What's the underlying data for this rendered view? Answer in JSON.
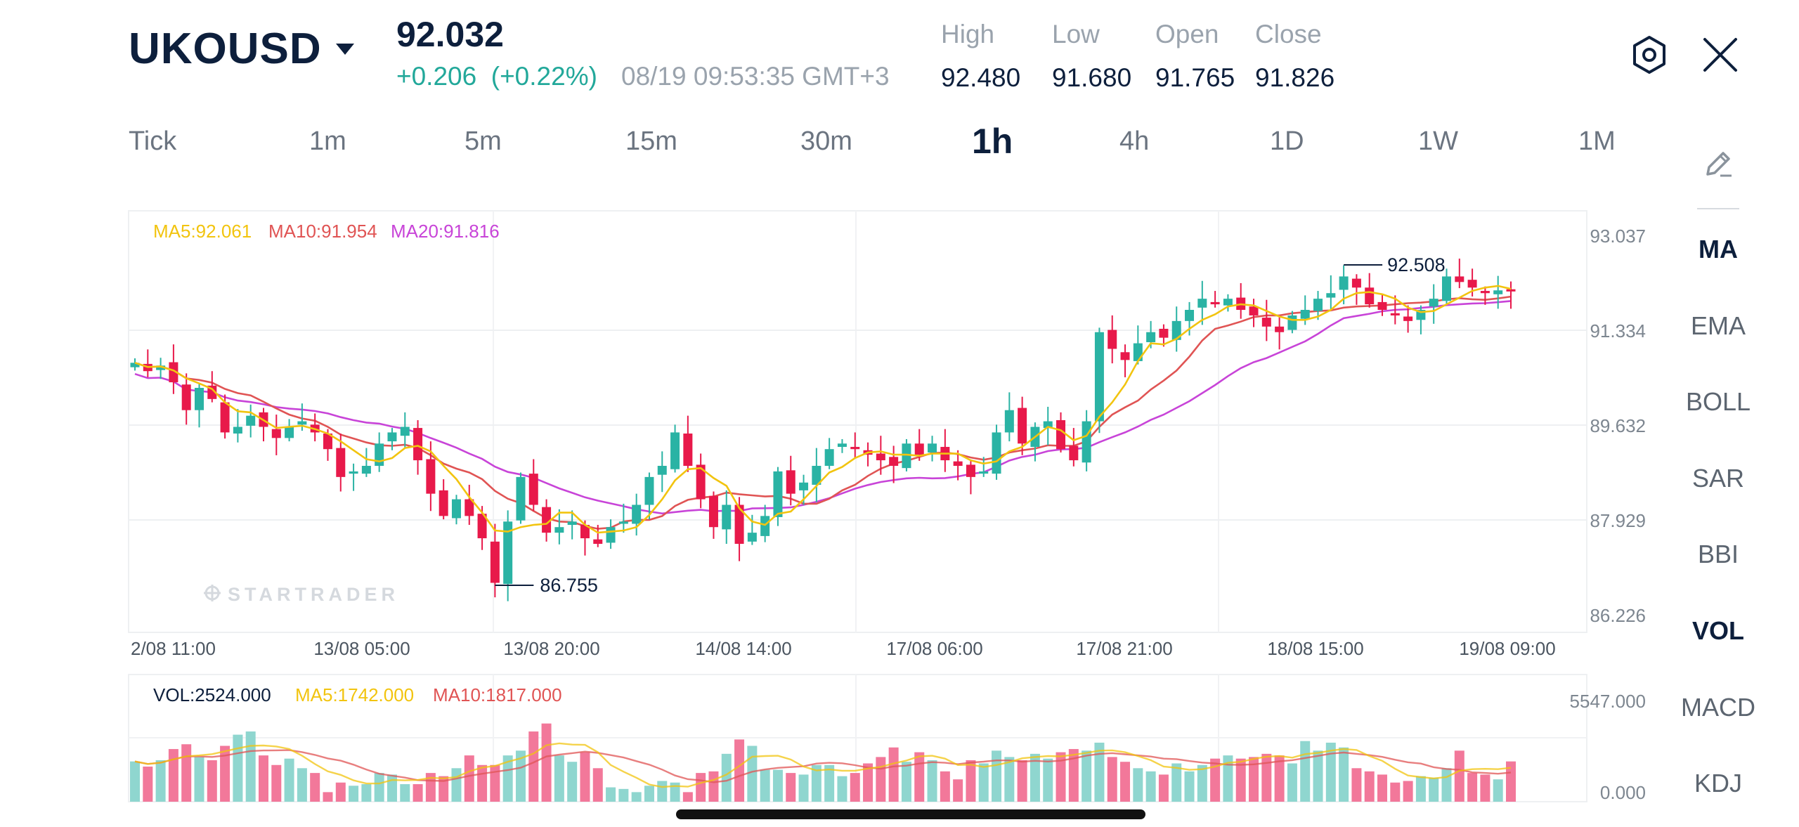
{
  "header": {
    "symbol": "UKOUSD",
    "price": "92.032",
    "change": "+0.206  (+0.22%)",
    "timestamp": "08/19 09:53:35 GMT+3",
    "stats": [
      {
        "label": "High",
        "value": "92.480"
      },
      {
        "label": "Low",
        "value": "91.680"
      },
      {
        "label": "Open",
        "value": "91.765"
      },
      {
        "label": "Close",
        "value": "91.826"
      }
    ]
  },
  "timeframes": [
    "Tick",
    "1m",
    "5m",
    "15m",
    "30m",
    "1h",
    "4h",
    "1D",
    "1W",
    "1M"
  ],
  "active_timeframe": "1h",
  "indicators": [
    "MA",
    "EMA",
    "BOLL",
    "SAR",
    "BBI",
    "VOL",
    "MACD",
    "KDJ"
  ],
  "active_indicators": [
    "MA",
    "VOL"
  ],
  "icons": [
    "settings-hexagon-icon",
    "close-icon",
    "draw-pencil-icon"
  ],
  "colors": {
    "up": "#2ab3a4",
    "down": "#e8194a",
    "ma5": "#f2c40f",
    "ma10": "#e05454",
    "ma20": "#c844d8",
    "vol_up": "#8fd6cf",
    "vol_down": "#f2789a"
  },
  "watermark": "STARTRADER",
  "chart_data": [
    {
      "type": "candlestick",
      "legend": {
        "ma5": "MA5:92.061",
        "ma10": "MA10:91.954",
        "ma20": "MA20:91.816"
      },
      "y_ticks": [
        "93.037",
        "91.334",
        "89.632",
        "87.929",
        "86.226"
      ],
      "ylim": [
        86.226,
        93.037
      ],
      "x_ticks": [
        "2/08 11:00",
        "13/08 05:00",
        "13/08 20:00",
        "14/08 14:00",
        "17/08 06:00",
        "17/08 21:00",
        "18/08 15:00",
        "19/08 09:00"
      ],
      "annotations": [
        {
          "label": "86.755",
          "value": 86.755
        },
        {
          "label": "92.508",
          "value": 92.508
        }
      ],
      "closes": [
        90.75,
        90.6,
        90.7,
        90.4,
        89.9,
        90.3,
        90.1,
        89.5,
        89.6,
        89.8,
        89.6,
        89.4,
        89.6,
        89.7,
        89.5,
        89.2,
        88.7,
        88.8,
        88.9,
        89.3,
        89.5,
        89.6,
        89.0,
        88.4,
        88.0,
        88.3,
        88.0,
        87.6,
        86.8,
        87.9,
        88.7,
        88.2,
        87.7,
        87.8,
        87.9,
        87.6,
        87.5,
        87.8,
        87.9,
        88.2,
        88.7,
        88.9,
        89.5,
        88.9,
        88.3,
        87.8,
        88.2,
        87.5,
        87.7,
        88.0,
        88.8,
        88.4,
        88.6,
        88.9,
        89.2,
        89.3,
        89.2,
        89.1,
        89.0,
        88.9,
        89.3,
        89.1,
        89.3,
        89.0,
        88.9,
        88.7,
        88.8,
        89.5,
        89.9,
        89.3,
        89.6,
        89.7,
        89.2,
        89.0,
        89.7,
        91.3,
        91.0,
        90.8,
        91.1,
        91.3,
        91.2,
        91.5,
        91.7,
        91.9,
        91.8,
        91.9,
        91.7,
        91.6,
        91.4,
        91.3,
        91.6,
        91.7,
        91.9,
        92.0,
        92.3,
        92.1,
        91.8,
        91.7,
        91.6,
        91.5,
        91.7,
        91.9,
        92.3,
        92.2,
        92.1,
        92.0,
        92.05,
        92.03
      ]
    },
    {
      "type": "bar",
      "legend": {
        "vol": "VOL:2524.000",
        "ma5": "MA5:1742.000",
        "ma10": "MA10:1817.000"
      },
      "y_ticks": [
        "5547.000",
        "0.000"
      ],
      "ylim": [
        0,
        5547
      ],
      "values": [
        2524,
        2200,
        2600,
        3300,
        3600,
        2800,
        2600,
        3500,
        4200,
        4400,
        2900,
        2300,
        2700,
        2100,
        1800,
        600,
        1200,
        1000,
        1100,
        1800,
        1700,
        1100,
        1100,
        1800,
        1600,
        2100,
        2900,
        2300,
        2300,
        2900,
        3200,
        4400,
        4900,
        2900,
        2500,
        3100,
        2100,
        900,
        800,
        600,
        1000,
        1300,
        1200,
        600,
        1800,
        1900,
        3000,
        3900,
        3500,
        2000,
        2000,
        1800,
        1700,
        2300,
        2300,
        1600,
        1800,
        2400,
        2800,
        3400,
        2500,
        3100,
        2600,
        1900,
        1400,
        2600,
        2400,
        3200,
        2800,
        2600,
        3000,
        2700,
        3100,
        3300,
        3200,
        3700,
        2800,
        2500,
        2100,
        1900,
        1700,
        2400,
        1900,
        2300,
        2700,
        2900,
        2700,
        2800,
        3000,
        2900,
        2400,
        3800,
        3200,
        3700,
        3400,
        2100,
        1900,
        1700,
        1200,
        1300,
        1600,
        1500,
        2100,
        3200,
        1800,
        1700,
        1400,
        2524
      ]
    }
  ]
}
